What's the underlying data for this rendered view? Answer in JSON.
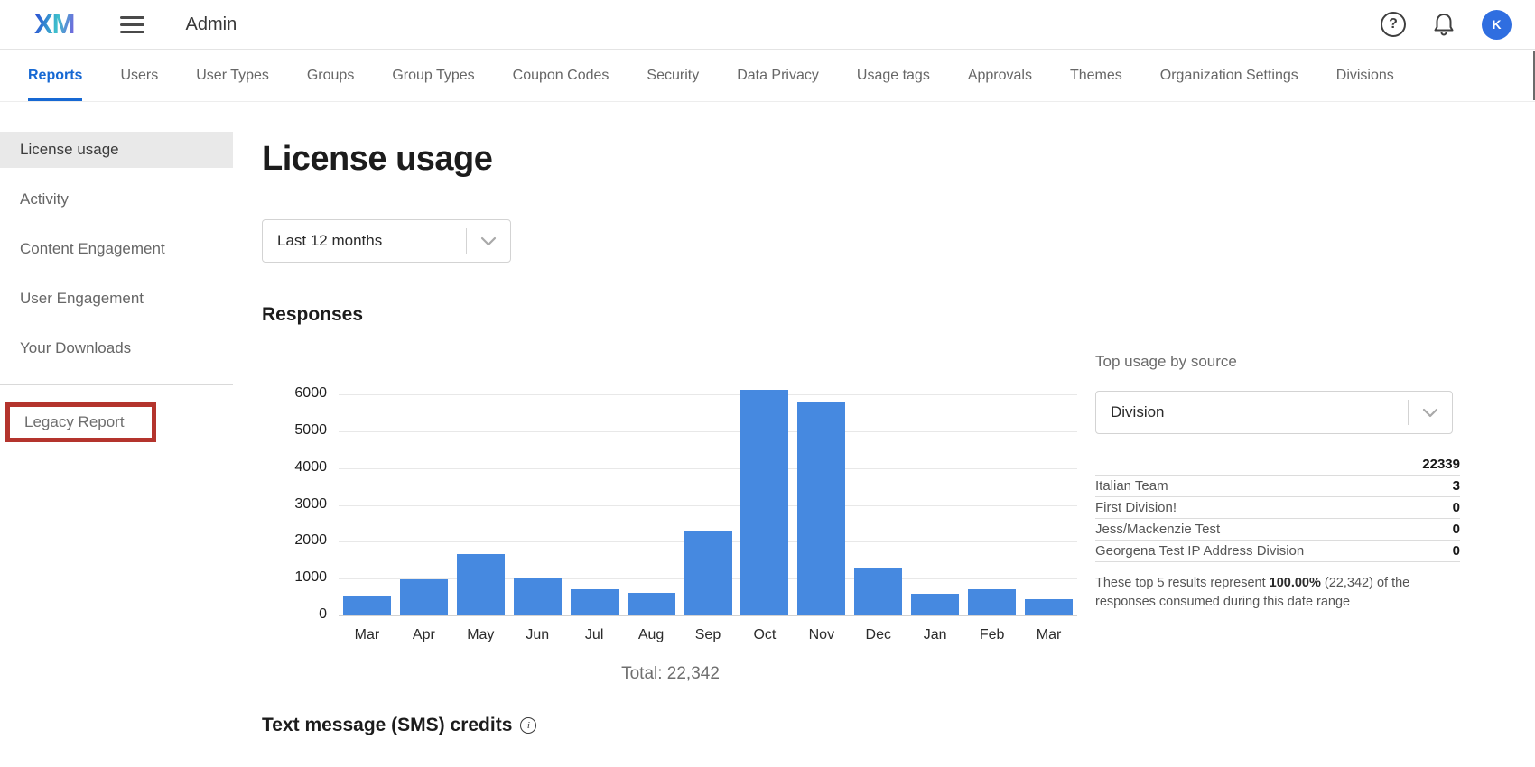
{
  "header": {
    "logo": "XM",
    "title": "Admin",
    "avatar_initial": "K",
    "help_icon_glyph": "?"
  },
  "tabs": [
    {
      "label": "Reports",
      "active": true
    },
    {
      "label": "Users",
      "active": false
    },
    {
      "label": "User Types",
      "active": false
    },
    {
      "label": "Groups",
      "active": false
    },
    {
      "label": "Group Types",
      "active": false
    },
    {
      "label": "Coupon Codes",
      "active": false
    },
    {
      "label": "Security",
      "active": false
    },
    {
      "label": "Data Privacy",
      "active": false
    },
    {
      "label": "Usage tags",
      "active": false
    },
    {
      "label": "Approvals",
      "active": false
    },
    {
      "label": "Themes",
      "active": false
    },
    {
      "label": "Organization Settings",
      "active": false
    },
    {
      "label": "Divisions",
      "active": false
    }
  ],
  "sidebar": {
    "items": [
      {
        "label": "License usage",
        "selected": true
      },
      {
        "label": "Activity",
        "selected": false
      },
      {
        "label": "Content Engagement",
        "selected": false
      },
      {
        "label": "User Engagement",
        "selected": false
      },
      {
        "label": "Your Downloads",
        "selected": false
      }
    ],
    "legacy_item": "Legacy Report"
  },
  "main": {
    "page_title": "License usage",
    "date_range_value": "Last 12 months",
    "responses_title": "Responses",
    "total_label": "Total: 22,342",
    "sms_title": "Text message (SMS) credits"
  },
  "top_usage": {
    "title": "Top usage by source",
    "dropdown_value": "Division",
    "rows": [
      {
        "label": "",
        "value": "22339"
      },
      {
        "label": "Italian Team",
        "value": "3"
      },
      {
        "label": "First Division!",
        "value": "0"
      },
      {
        "label": "Jess/Mackenzie Test",
        "value": "0"
      },
      {
        "label": "Georgena Test IP Address Division",
        "value": "0"
      }
    ],
    "footnote_prefix": "These top 5 results represent ",
    "footnote_bold": "100.00%",
    "footnote_suffix": " (22,342) of the responses consumed during this date range"
  },
  "chart_data": {
    "type": "bar",
    "title": "Responses",
    "categories": [
      "Mar",
      "Apr",
      "May",
      "Jun",
      "Jul",
      "Aug",
      "Sep",
      "Oct",
      "Nov",
      "Dec",
      "Jan",
      "Feb",
      "Mar"
    ],
    "values": [
      550,
      990,
      1670,
      1030,
      720,
      610,
      2280,
      6130,
      5790,
      1270,
      580,
      710,
      440
    ],
    "total_label": "Total: 22,342",
    "xlabel": "",
    "ylabel": "",
    "ylim": [
      0,
      6000
    ],
    "yticks": [
      0,
      1000,
      2000,
      3000,
      4000,
      5000,
      6000
    ],
    "grid": true,
    "legend": "none",
    "bar_color": "#4689e0"
  },
  "colors": {
    "accent_blue": "#1668d3",
    "bar_blue": "#4689e0",
    "avatar_blue": "#2f6ee0",
    "annotation_red": "#b4342d",
    "selected_item_bg": "#e9e9e9"
  }
}
